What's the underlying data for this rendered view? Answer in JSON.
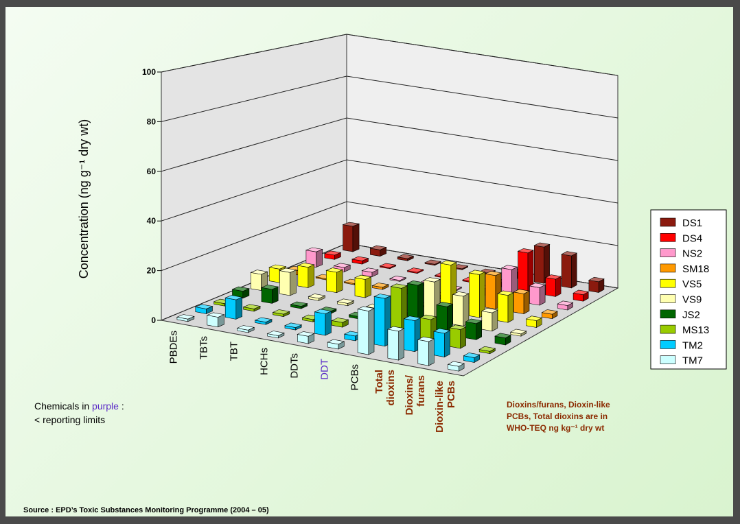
{
  "chart_data": {
    "type": "bar3d",
    "y_label": "Concentration (ng g⁻¹ dry wt)",
    "categories": [
      "PBDEs",
      "TBTs",
      "TBT",
      "HCHs",
      "DDTs",
      "DDT",
      "PCBs",
      "Total\ndioxins",
      "Dioxins/\nfurans",
      "Dioxin-like\nPCBs"
    ],
    "category_colors": [
      "#000000",
      "#000000",
      "#000000",
      "#000000",
      "#000000",
      "#5b2bc7",
      "#000000",
      "#8b2a00",
      "#8b2a00",
      "#8b2a00"
    ],
    "series": [
      {
        "name": "DS1",
        "color": "#8b1a0e",
        "values": [
          12,
          3,
          1,
          0.5,
          0.5,
          0.5,
          3,
          17,
          15,
          5
        ]
      },
      {
        "name": "DS4",
        "color": "#ff0000",
        "values": [
          2,
          1.5,
          0.5,
          0.5,
          0.5,
          0.5,
          2,
          18,
          8,
          3
        ]
      },
      {
        "name": "NS2",
        "color": "#ff99cc",
        "values": [
          7,
          2,
          2,
          0.5,
          0.5,
          0.5,
          3,
          14,
          8,
          2
        ]
      },
      {
        "name": "SM18",
        "color": "#ff9900",
        "values": [
          2,
          0.5,
          0.5,
          1,
          2,
          1.5,
          3,
          15,
          9,
          2
        ]
      },
      {
        "name": "VS5",
        "color": "#ffff00",
        "values": [
          6,
          9,
          9,
          8,
          0.5,
          0.5,
          21,
          19,
          12,
          3
        ]
      },
      {
        "name": "VS9",
        "color": "#ffffb0",
        "values": [
          7,
          10,
          1,
          1,
          1,
          1,
          17,
          13,
          8,
          1
        ]
      },
      {
        "name": "JS2",
        "color": "#006600",
        "values": [
          3,
          6,
          1,
          1,
          1,
          1,
          19,
          12,
          7,
          3
        ]
      },
      {
        "name": "MS13",
        "color": "#99cc00",
        "values": [
          1,
          1,
          1,
          1,
          2,
          2,
          21,
          10,
          8,
          1
        ]
      },
      {
        "name": "TM2",
        "color": "#00ccff",
        "values": [
          2,
          8,
          1,
          1,
          9,
          2,
          20,
          13,
          10,
          2
        ]
      },
      {
        "name": "TM7",
        "color": "#ccffff",
        "values": [
          1,
          4,
          1,
          1,
          3,
          2,
          18,
          12,
          10,
          2
        ]
      }
    ],
    "ylim": [
      0,
      100
    ],
    "yticks": [
      0,
      20,
      40,
      60,
      80,
      100
    ],
    "grid": true,
    "legend": "right",
    "annotation": [
      "Chemicals in ",
      "purple",
      " :",
      "< reporting limits"
    ],
    "annotation_highlight": "#5b2bc7",
    "note": [
      "Dioxins/furans, Dioxin-like",
      "PCBs, Total dioxins are in",
      "WHO-TEQ ng kg⁻¹ dry wt"
    ],
    "source": "Source : EPD’s Toxic Substances Monitoring Programme (2004 – 05)"
  }
}
